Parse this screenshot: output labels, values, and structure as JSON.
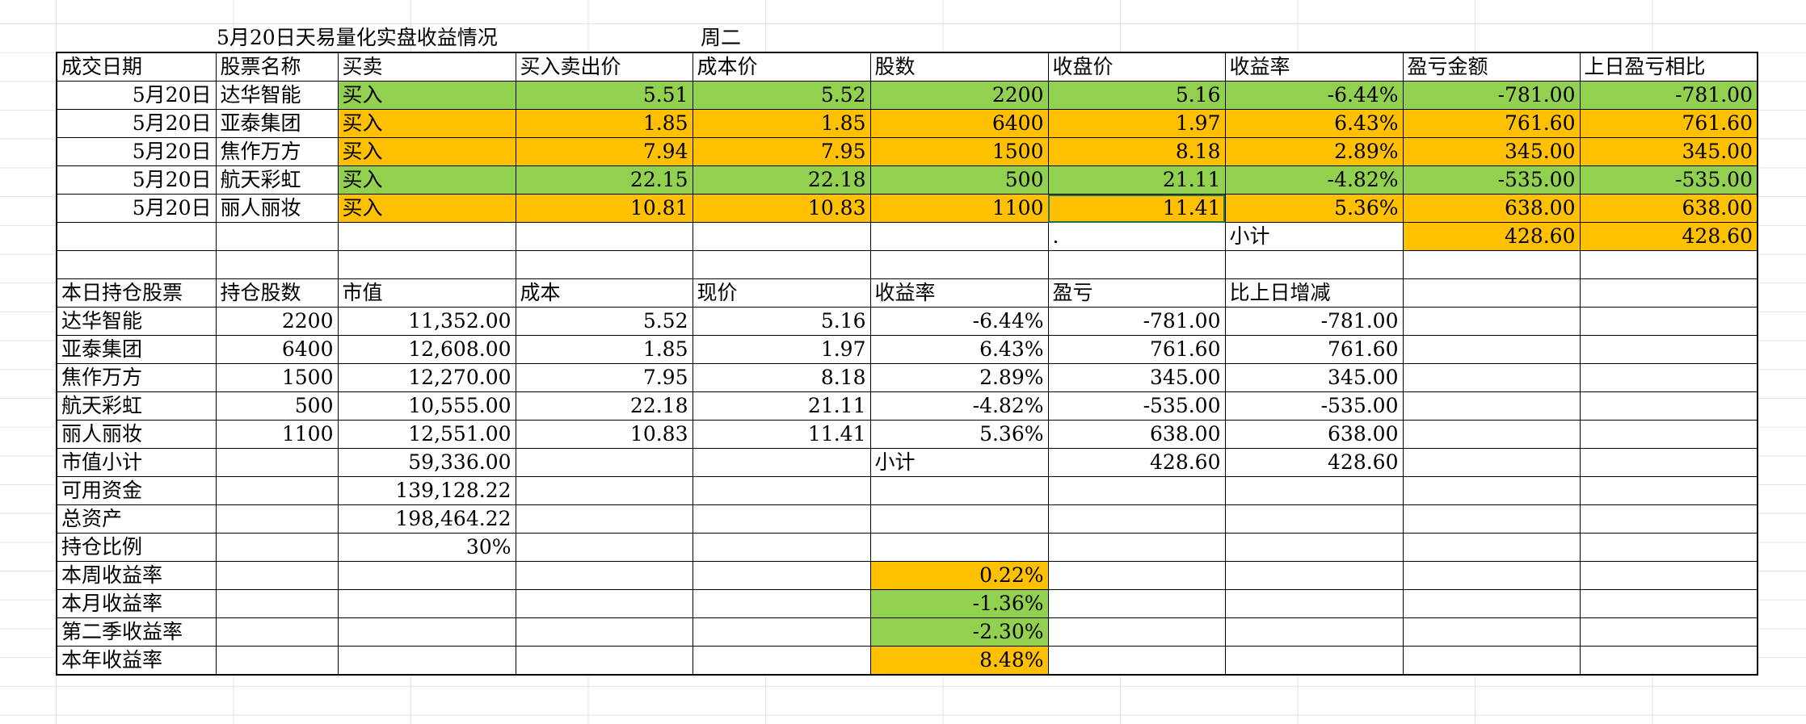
{
  "title": "5月20日天易量化实盘收益情况",
  "weekday": "周二",
  "colors": {
    "green": "#92d050",
    "orange": "#ffc000"
  },
  "trade_table": {
    "headers": [
      "成交日期",
      "股票名称",
      "买卖",
      "买入卖出价",
      "成本价",
      "股数",
      "收盘价",
      "收益率",
      "盈亏金额",
      "上日盈亏相比"
    ],
    "rows": [
      [
        "5月20日",
        "达华智能",
        "买入",
        "5.51",
        "5.52",
        "2200",
        "5.16",
        "-6.44%",
        "-781.00",
        "-781.00"
      ],
      [
        "5月20日",
        "亚泰集团",
        "买入",
        "1.85",
        "1.85",
        "6400",
        "1.97",
        "6.43%",
        "761.60",
        "761.60"
      ],
      [
        "5月20日",
        "焦作万方",
        "买入",
        "7.94",
        "7.95",
        "1500",
        "8.18",
        "2.89%",
        "345.00",
        "345.00"
      ],
      [
        "5月20日",
        "航天彩虹",
        "买入",
        "22.15",
        "22.18",
        "500",
        "21.11",
        "-4.82%",
        "-535.00",
        "-535.00"
      ],
      [
        "5月20日",
        "丽人丽妆",
        "买入",
        "10.81",
        "10.83",
        "1100",
        "11.41",
        "5.36%",
        "638.00",
        "638.00"
      ]
    ],
    "row_colors": [
      "green",
      "orange",
      "orange",
      "green",
      "orange"
    ],
    "dot": ".",
    "subtotal_label": "小计",
    "subtotal_pnl": "428.60",
    "subtotal_vs_prev": "428.60"
  },
  "holdings_table": {
    "headers": [
      "本日持仓股票",
      "持仓股数",
      "市值",
      "成本",
      "现价",
      "收益率",
      "盈亏",
      "比上日增减"
    ],
    "rows": [
      [
        "达华智能",
        "2200",
        "11,352.00",
        "5.52",
        "5.16",
        "-6.44%",
        "-781.00",
        "-781.00"
      ],
      [
        "亚泰集团",
        "6400",
        "12,608.00",
        "1.85",
        "1.97",
        "6.43%",
        "761.60",
        "761.60"
      ],
      [
        "焦作万方",
        "1500",
        "12,270.00",
        "7.95",
        "8.18",
        "2.89%",
        "345.00",
        "345.00"
      ],
      [
        "航天彩虹",
        "500",
        "10,555.00",
        "22.18",
        "21.11",
        "-4.82%",
        "-535.00",
        "-535.00"
      ],
      [
        "丽人丽妆",
        "1100",
        "12,551.00",
        "10.83",
        "11.41",
        "5.36%",
        "638.00",
        "638.00"
      ]
    ],
    "market_value_label": "市值小计",
    "market_value": "59,336.00",
    "subtotal_label": "小计",
    "subtotal_pnl": "428.60",
    "subtotal_vs_prev": "428.60"
  },
  "summary": {
    "available_funds_label": "可用资金",
    "available_funds": "139,128.22",
    "total_assets_label": "总资产",
    "total_assets": "198,464.22",
    "position_ratio_label": "持仓比例",
    "position_ratio": "30%"
  },
  "returns": [
    {
      "label": "本周收益率",
      "value": "0.22%",
      "color": "orange"
    },
    {
      "label": "本月收益率",
      "value": "-1.36%",
      "color": "green"
    },
    {
      "label": "第二季收益率",
      "value": "-2.30%",
      "color": "green"
    },
    {
      "label": "本年收益率",
      "value": "8.48%",
      "color": "orange"
    }
  ]
}
